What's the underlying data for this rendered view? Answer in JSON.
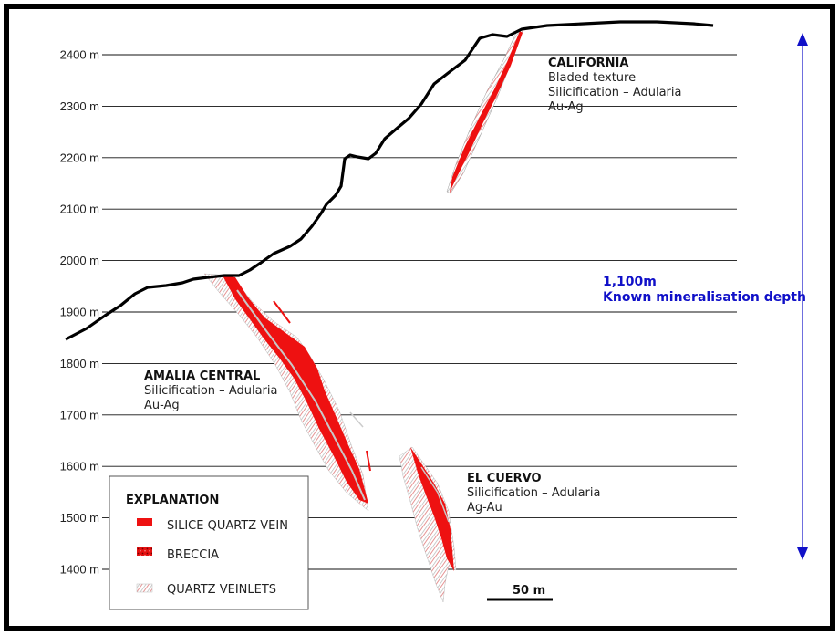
{
  "elevation_axis": {
    "unit": "m",
    "ticks": [
      {
        "value": 2400,
        "label": "2400 m"
      },
      {
        "value": 2300,
        "label": "2300 m"
      },
      {
        "value": 2200,
        "label": "2200 m"
      },
      {
        "value": 2100,
        "label": "2100 m"
      },
      {
        "value": 2000,
        "label": "2000 m"
      },
      {
        "value": 1900,
        "label": "1900 m"
      },
      {
        "value": 1800,
        "label": "1800 m"
      },
      {
        "value": 1700,
        "label": "1700 m"
      },
      {
        "value": 1600,
        "label": "1600 m"
      },
      {
        "value": 1500,
        "label": "1500 m"
      },
      {
        "value": 1400,
        "label": "1400 m"
      }
    ]
  },
  "zones": {
    "california": {
      "name": "CALIFORNIA",
      "lines": [
        "Bladed texture",
        "Silicification – Adularia",
        "Au-Ag"
      ]
    },
    "amalia": {
      "name": "AMALIA CENTRAL",
      "lines": [
        "Silicification – Adularia",
        "Au-Ag"
      ]
    },
    "cuervo": {
      "name": "EL CUERVO",
      "lines": [
        "Silicification – Adularia",
        "Ag-Au"
      ]
    }
  },
  "depth_annotation": {
    "value": "1,100m",
    "label": "Known mineralisation depth"
  },
  "legend": {
    "title": "EXPLANATION",
    "items": [
      {
        "label": "SILICE QUARTZ VEIN",
        "pattern": "solid-red"
      },
      {
        "label": "BRECCIA",
        "pattern": "red-breccia"
      },
      {
        "label": "QUARTZ VEINLETS",
        "pattern": "hatched-grey"
      }
    ]
  },
  "scale_bar": {
    "label": "50 m"
  },
  "colors": {
    "vein": "#ee1111",
    "annotation": "#1010c8",
    "profile": "#000000"
  }
}
